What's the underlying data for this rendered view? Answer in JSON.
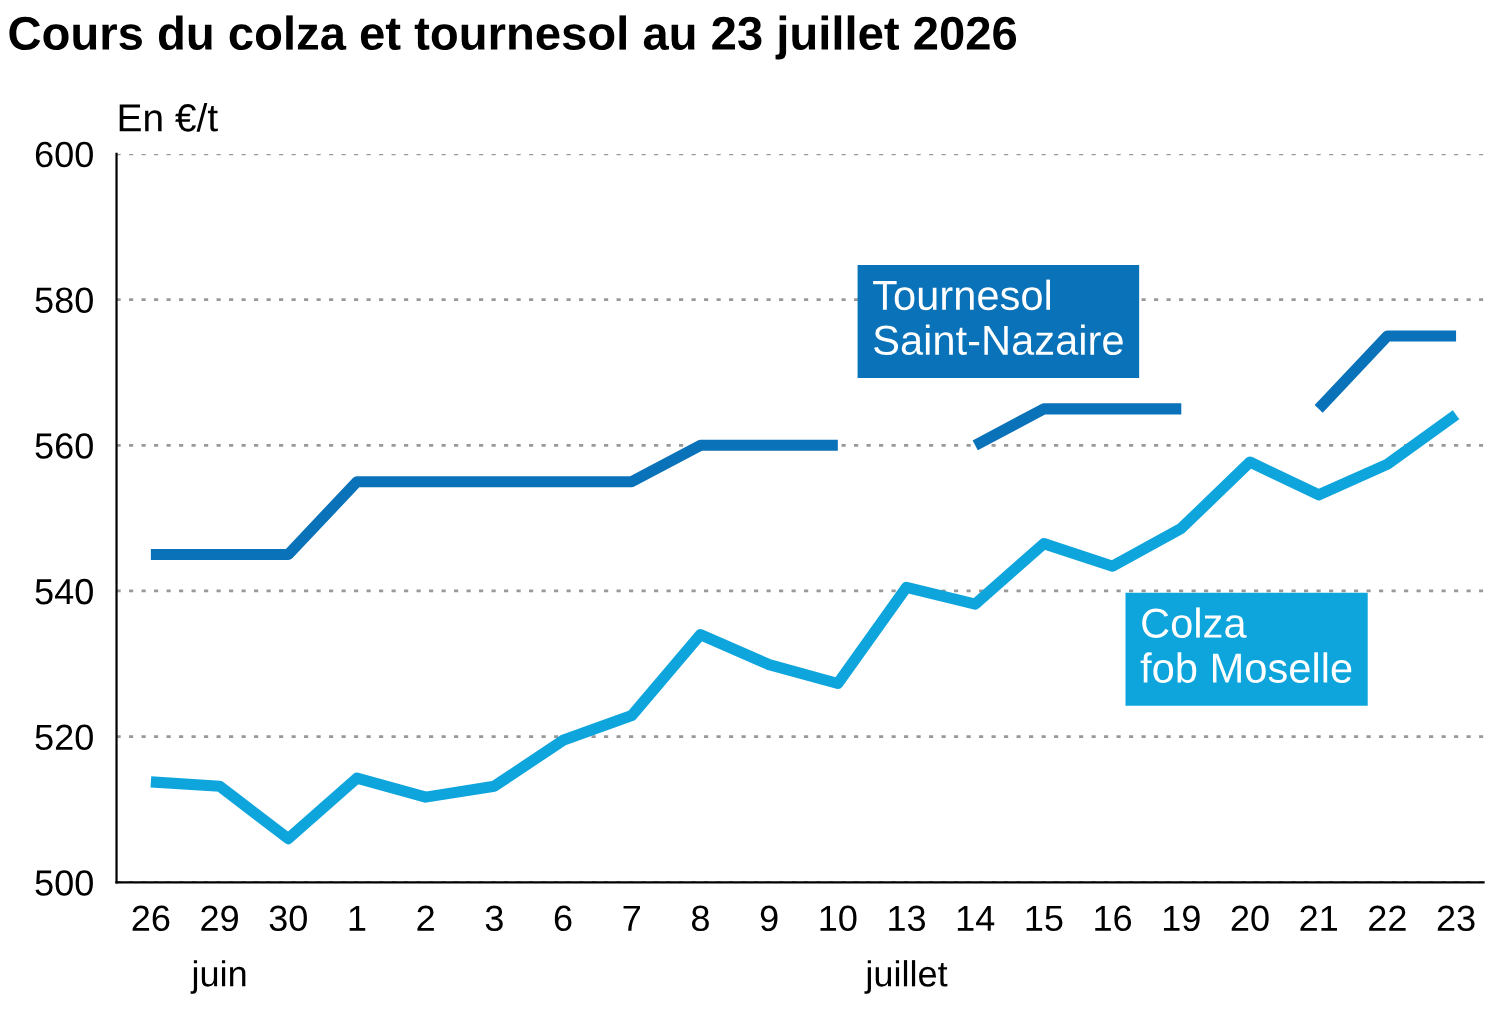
{
  "chart_data": {
    "type": "line",
    "title": "Cours du colza et tournesol au 23 juillet 2026",
    "ylabel": "En €/t",
    "categories": [
      "26",
      "29",
      "30",
      "1",
      "2",
      "3",
      "6",
      "7",
      "8",
      "9",
      "10",
      "13",
      "14",
      "15",
      "16",
      "19",
      "20",
      "21",
      "22",
      "23"
    ],
    "series": [
      {
        "name": "Tournesol\nSaint-Nazaire",
        "color": "#0a72b9",
        "values": [
          545,
          545,
          545,
          555,
          555,
          555,
          555,
          555,
          560,
          560,
          560,
          null,
          560,
          565,
          565,
          565,
          null,
          565,
          575,
          575
        ]
      },
      {
        "name": "Colza\nfob Moselle",
        "color": "#0ea5dd",
        "values": [
          513.8,
          513.2,
          506,
          514.3,
          511.7,
          513.2,
          519.5,
          522.9,
          534,
          529.9,
          527.3,
          540.5,
          538.2,
          546.5,
          543.4,
          548.6,
          557.7,
          553.2,
          557.4,
          564.2
        ]
      }
    ],
    "annotations": [
      "juin",
      "juillet"
    ],
    "ylim": [
      500,
      600
    ],
    "yticks": [
      500,
      520,
      540,
      560,
      580,
      600
    ],
    "grid": "y",
    "legend": false,
    "marker": "none",
    "line_style": "solid"
  }
}
